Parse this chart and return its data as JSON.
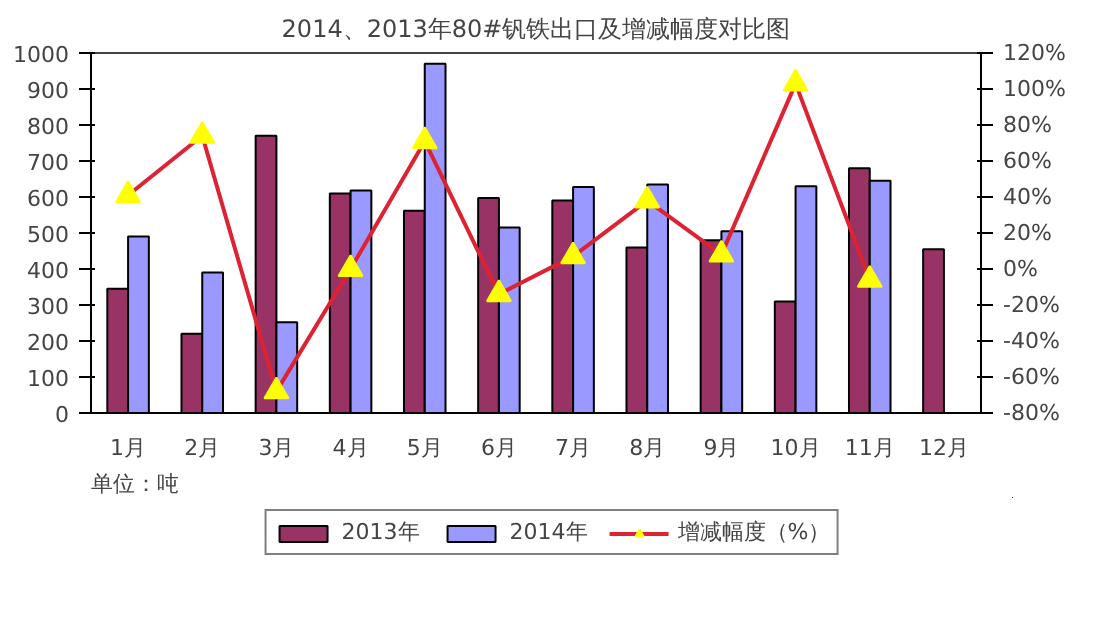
{
  "chart_data": {
    "type": "bar",
    "title": "2014、2013年80#钒铁出口及增减幅度对比图",
    "categories": [
      "1月",
      "2月",
      "3月",
      "4月",
      "5月",
      "6月",
      "7月",
      "8月",
      "9月",
      "10月",
      "11月",
      "12月"
    ],
    "series": [
      {
        "name": "2013年",
        "color": "#993366",
        "values": [
          345,
          220,
          770,
          610,
          562,
          597,
          590,
          460,
          480,
          310,
          680,
          455
        ]
      },
      {
        "name": "2014年",
        "color": "#9999ff",
        "values": [
          490,
          390,
          252,
          618,
          970,
          515,
          628,
          635,
          505,
          630,
          645,
          null
        ]
      },
      {
        "name": "增减幅度（%）",
        "type": "line",
        "axis": "y2",
        "color": "#dd2233",
        "marker": "triangle",
        "values": [
          41,
          74,
          -68,
          0,
          71,
          -14,
          7,
          38,
          8,
          103,
          -6,
          null
        ]
      }
    ],
    "ylim": [
      0,
      1000
    ],
    "yticks": [
      0,
      100,
      200,
      300,
      400,
      500,
      600,
      700,
      800,
      900,
      1000
    ],
    "y2lim": [
      -80,
      120
    ],
    "y2ticks": [
      {
        "value": -80,
        "label": "-80%"
      },
      {
        "value": -60,
        "label": "-60%"
      },
      {
        "value": -40,
        "label": "-40%"
      },
      {
        "value": -20,
        "label": "-20%"
      },
      {
        "value": 0,
        "label": "0%"
      },
      {
        "value": 20,
        "label": "20%"
      },
      {
        "value": 40,
        "label": "40%"
      },
      {
        "value": 60,
        "label": "60%"
      },
      {
        "value": 80,
        "label": "80%"
      },
      {
        "value": 100,
        "label": "100%"
      },
      {
        "value": 120,
        "label": "120%"
      }
    ],
    "annotations": [
      "单位：吨"
    ],
    "legend": "bottom",
    "grid": false
  }
}
